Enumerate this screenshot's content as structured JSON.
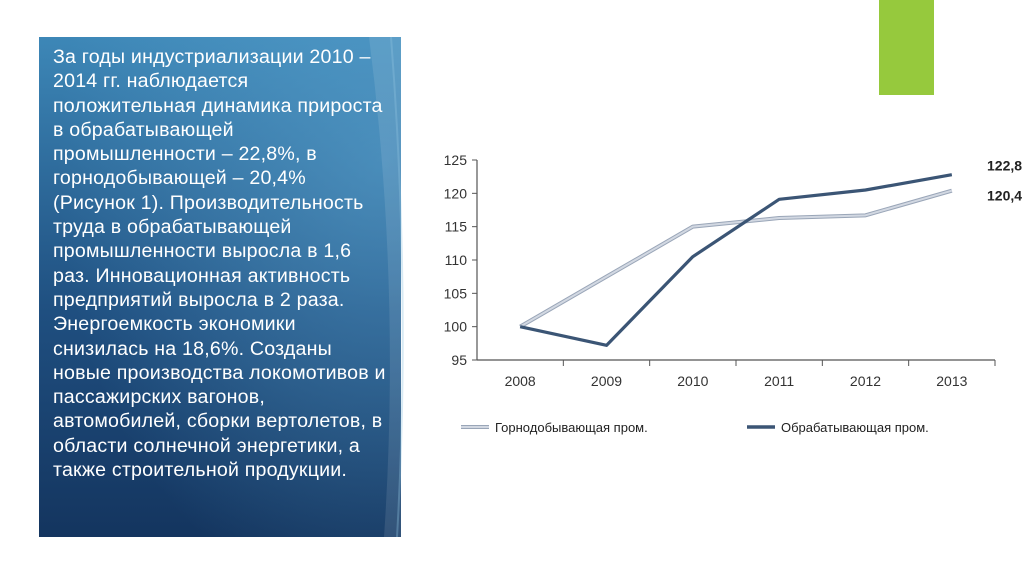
{
  "slide": {
    "body_text": "За годы индустриализации 2010 – 2014 гг. наблюдается положительная динамика прироста в обрабатывающей промышленности – 22,8%, в горнодобывающей – 20,4% (Рисунок 1). Производительность труда в обрабатывающей промышленности выросла в 1,6 раз. Инновационная активность предприятий выросла в 2 раза. Энергоемкость экономики снизилась на 18,6%. Созданы новые производства локомотивов и пассажирских вагонов, автомобилей, сборки вертолетов, в области солнечной энергетики, а также строительной продукции.",
    "panel_colors": [
      "#3d87b7",
      "#1f4f80",
      "#14355f"
    ],
    "accent_color": "#96c93d"
  },
  "chart_data": {
    "type": "line",
    "title": "",
    "xlabel": "",
    "ylabel": "",
    "categories": [
      "2008",
      "2009",
      "2010",
      "2011",
      "2012",
      "2013"
    ],
    "yticks": [
      "95",
      "100",
      "105",
      "110",
      "115",
      "120",
      "125"
    ],
    "ylim": [
      95,
      125
    ],
    "grid": false,
    "legend_position": "bottom",
    "series": [
      {
        "name": "Горнодобывающая пром.",
        "values": [
          100,
          107.5,
          115,
          116.3,
          116.7,
          120.4
        ],
        "color": "#d2d8e2",
        "end_label": "120,4"
      },
      {
        "name": "Обрабатывающая пром.",
        "values": [
          100,
          97.2,
          110.5,
          119.1,
          120.5,
          122.8
        ],
        "color": "#3b5575",
        "end_label": "122,8"
      }
    ]
  }
}
